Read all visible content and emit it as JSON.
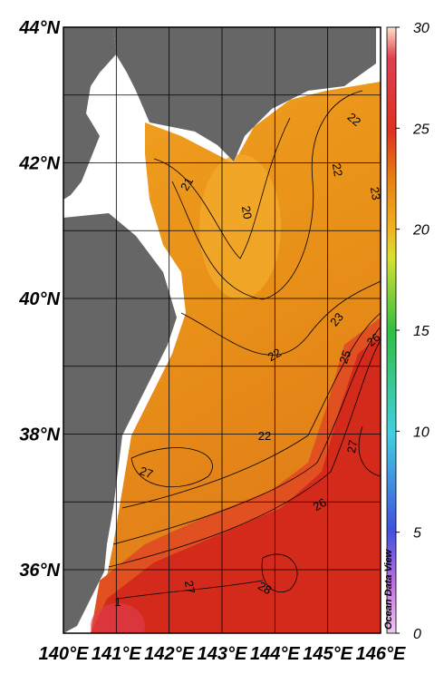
{
  "map": {
    "lat_labels": [
      "44°N",
      "42°N",
      "40°N",
      "38°N",
      "36°N"
    ],
    "lon_labels": [
      "140°E",
      "141°E",
      "142°E",
      "143°E",
      "144°E",
      "145°E",
      "146°E"
    ],
    "colorbar": {
      "lim": [
        0,
        30
      ],
      "ticks": [
        0,
        5,
        10,
        15,
        20,
        25,
        30
      ]
    },
    "contour_labels": [
      21,
      20,
      22,
      22,
      23,
      23,
      25,
      26,
      22,
      22,
      27,
      27,
      26,
      27,
      28,
      1
    ],
    "watermark": "Ocean Data View"
  }
}
